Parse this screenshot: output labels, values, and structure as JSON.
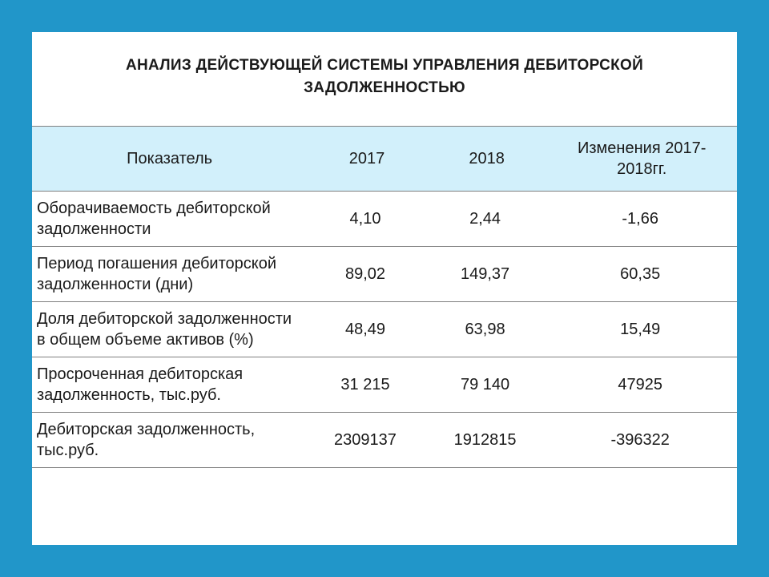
{
  "title": "АНАЛИЗ ДЕЙСТВУЮЩЕЙ СИСТЕМЫ УПРАВЛЕНИЯ ДЕБИТОРСКОЙ ЗАДОЛЖЕННОСТЬЮ",
  "table": {
    "type": "table",
    "background_color": "#ffffff",
    "header_bg": "#d2f0fb",
    "border_color": "#808080",
    "text_color": "#1a1a1a",
    "font_family": "Arial",
    "header_fontsize": 20,
    "cell_fontsize": 20,
    "title_fontsize": 19,
    "columns": [
      {
        "key": "indicator",
        "label": "Показатель",
        "width_pct": 39,
        "align": "left"
      },
      {
        "key": "y2017",
        "label": "2017",
        "width_pct": 17,
        "align": "center"
      },
      {
        "key": "y2018",
        "label": "2018",
        "width_pct": 17,
        "align": "center"
      },
      {
        "key": "change",
        "label": "Изменения 2017-2018гг.",
        "width_pct": 27,
        "align": "center"
      }
    ],
    "rows": [
      {
        "indicator": "Оборачиваемость дебиторской задолженности",
        "y2017": "4,10",
        "y2018": "2,44",
        "change": "-1,66"
      },
      {
        "indicator": "Период погашения дебиторской задолженности (дни)",
        "y2017": "89,02",
        "y2018": "149,37",
        "change": "60,35"
      },
      {
        "indicator": "Доля дебиторской задолженности в общем объеме активов (%)",
        "y2017": "48,49",
        "y2018": "63,98",
        "change": "15,49"
      },
      {
        "indicator": "Просроченная дебиторская задолженность, тыс.руб.",
        "y2017": "31 215",
        "y2018": "79 140",
        "change": "47925"
      },
      {
        "indicator": "Дебиторская задолженность, тыс.руб.",
        "y2017": "2309137",
        "y2018": "1912815",
        "change": "-396322"
      }
    ]
  },
  "frame": {
    "outer_bg": "#2196c9",
    "slide_bg": "#ffffff",
    "slide_width": 880,
    "slide_height": 640
  }
}
